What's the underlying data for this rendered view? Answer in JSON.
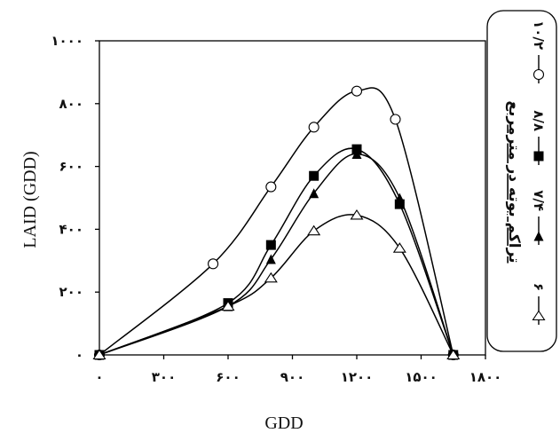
{
  "chart_data": {
    "type": "line",
    "xlabel": "GDD",
    "ylabel": "LAID (GDD)",
    "xlim": [
      0,
      1800
    ],
    "ylim": [
      0,
      1000
    ],
    "x_ticks": [
      0,
      300,
      600,
      900,
      1200,
      1500,
      1800
    ],
    "x_tick_labels": [
      "۰",
      "۳۰۰",
      "۶۰۰",
      "۹۰۰",
      "۱۲۰۰",
      "۱۵۰۰",
      "۱۸۰۰"
    ],
    "y_ticks": [
      0,
      200,
      400,
      600,
      800,
      1000
    ],
    "y_tick_labels": [
      "۰",
      "۲۰۰",
      "۴۰۰",
      "۶۰۰",
      "۸۰۰",
      "۱۰۰۰"
    ],
    "legend": {
      "title": "تراکم بوته در مترمربع",
      "position": "right",
      "entries": [
        "۱۰/۲",
        "۸/۸",
        "۷/۴",
        "۶"
      ]
    },
    "series": [
      {
        "name": "۱۰/۲",
        "marker": "open-circle",
        "x": [
          0,
          530,
          800,
          1000,
          1200,
          1380,
          1650
        ],
        "y": [
          0,
          290,
          535,
          725,
          840,
          750,
          0
        ]
      },
      {
        "name": "۸/۸",
        "marker": "filled-square",
        "x": [
          0,
          600,
          800,
          1000,
          1200,
          1400,
          1650
        ],
        "y": [
          0,
          165,
          350,
          570,
          655,
          480,
          0
        ]
      },
      {
        "name": "۷/۴",
        "marker": "filled-triangle",
        "x": [
          0,
          600,
          800,
          1000,
          1200,
          1400,
          1650
        ],
        "y": [
          0,
          155,
          305,
          515,
          640,
          500,
          0
        ]
      },
      {
        "name": "۶",
        "marker": "open-triangle",
        "x": [
          0,
          600,
          800,
          1000,
          1200,
          1400,
          1650
        ],
        "y": [
          0,
          155,
          245,
          395,
          445,
          340,
          0
        ]
      }
    ]
  }
}
